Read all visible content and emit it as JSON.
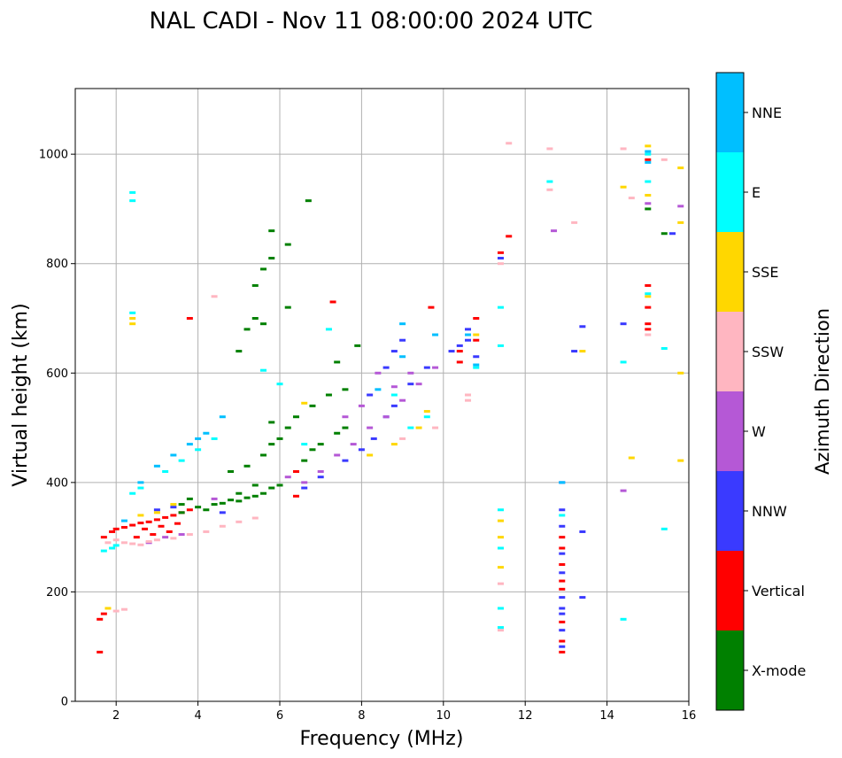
{
  "chart_data": {
    "type": "scatter",
    "title": "NAL CADI - Nov 11 08:00:00 2024 UTC",
    "xlabel": "Frequency (MHz)",
    "ylabel": "Virtual height (km)",
    "xlim": [
      1,
      16
    ],
    "ylim": [
      0,
      1120
    ],
    "xticks": [
      2,
      4,
      6,
      8,
      10,
      12,
      14,
      16
    ],
    "yticks": [
      0,
      200,
      400,
      600,
      800,
      1000
    ],
    "grid": true,
    "colorbar": {
      "label": "Azimuth Direction",
      "categories": [
        {
          "name": "X-mode",
          "color": "#008000"
        },
        {
          "name": "Vertical",
          "color": "#ff0000"
        },
        {
          "name": "NNW",
          "color": "#3a3aff"
        },
        {
          "name": "W",
          "color": "#b558d6"
        },
        {
          "name": "SSW",
          "color": "#ffb6c1"
        },
        {
          "name": "SSE",
          "color": "#ffd700"
        },
        {
          "name": "E",
          "color": "#00ffff"
        },
        {
          "name": "NNE",
          "color": "#00bfff"
        }
      ]
    },
    "series": [
      {
        "name": "Vertical",
        "points": [
          [
            1.7,
            300
          ],
          [
            1.9,
            310
          ],
          [
            2.0,
            315
          ],
          [
            2.2,
            318
          ],
          [
            2.4,
            322
          ],
          [
            2.6,
            326
          ],
          [
            2.8,
            328
          ],
          [
            3.0,
            332
          ],
          [
            3.2,
            336
          ],
          [
            3.4,
            340
          ],
          [
            3.6,
            345
          ],
          [
            3.8,
            350
          ],
          [
            2.5,
            300
          ],
          [
            2.9,
            305
          ],
          [
            3.3,
            310
          ],
          [
            2.7,
            315
          ],
          [
            3.1,
            320
          ],
          [
            3.5,
            325
          ],
          [
            1.7,
            160
          ],
          [
            1.6,
            150
          ],
          [
            1.6,
            90
          ],
          [
            6.4,
            420
          ],
          [
            6.4,
            375
          ],
          [
            10.4,
            640
          ],
          [
            10.4,
            620
          ],
          [
            10.8,
            700
          ],
          [
            10.8,
            660
          ],
          [
            11.4,
            820
          ],
          [
            11.6,
            850
          ],
          [
            12.9,
            300
          ],
          [
            12.9,
            280
          ],
          [
            12.9,
            250
          ],
          [
            12.9,
            220
          ],
          [
            12.9,
            205
          ],
          [
            12.9,
            145
          ],
          [
            12.9,
            110
          ],
          [
            12.9,
            90
          ],
          [
            15.0,
            760
          ],
          [
            15.0,
            720
          ],
          [
            15.0,
            690
          ],
          [
            15.0,
            680
          ],
          [
            15.0,
            990
          ],
          [
            7.3,
            730
          ],
          [
            3.8,
            700
          ],
          [
            9.7,
            720
          ]
        ]
      },
      {
        "name": "X-mode",
        "points": [
          [
            3.6,
            345
          ],
          [
            4.0,
            355
          ],
          [
            4.4,
            360
          ],
          [
            4.8,
            368
          ],
          [
            5.2,
            372
          ],
          [
            5.6,
            380
          ],
          [
            5.8,
            390
          ],
          [
            6.0,
            395
          ],
          [
            4.2,
            350
          ],
          [
            4.6,
            362
          ],
          [
            5.0,
            366
          ],
          [
            5.4,
            375
          ],
          [
            4.8,
            420
          ],
          [
            5.2,
            430
          ],
          [
            5.6,
            450
          ],
          [
            5.8,
            470
          ],
          [
            6.0,
            480
          ],
          [
            6.2,
            500
          ],
          [
            6.6,
            440
          ],
          [
            6.8,
            460
          ],
          [
            7.0,
            470
          ],
          [
            7.4,
            490
          ],
          [
            7.6,
            500
          ],
          [
            5.8,
            510
          ],
          [
            6.4,
            520
          ],
          [
            6.8,
            540
          ],
          [
            7.2,
            560
          ],
          [
            7.6,
            570
          ],
          [
            5.0,
            380
          ],
          [
            5.4,
            395
          ],
          [
            5.0,
            640
          ],
          [
            5.2,
            680
          ],
          [
            5.6,
            690
          ],
          [
            5.4,
            760
          ],
          [
            5.6,
            790
          ],
          [
            5.8,
            810
          ],
          [
            6.2,
            720
          ],
          [
            6.2,
            835
          ],
          [
            5.4,
            700
          ],
          [
            6.7,
            915
          ],
          [
            7.4,
            620
          ],
          [
            7.9,
            650
          ],
          [
            5.8,
            860
          ],
          [
            3.6,
            360
          ],
          [
            3.8,
            370
          ],
          [
            15.4,
            855
          ],
          [
            15.0,
            900
          ]
        ]
      },
      {
        "name": "NNW",
        "points": [
          [
            3.0,
            350
          ],
          [
            3.4,
            355
          ],
          [
            4.6,
            345
          ],
          [
            6.6,
            390
          ],
          [
            7.0,
            410
          ],
          [
            7.6,
            440
          ],
          [
            8.0,
            460
          ],
          [
            8.3,
            480
          ],
          [
            8.6,
            520
          ],
          [
            8.8,
            540
          ],
          [
            8.2,
            560
          ],
          [
            8.6,
            610
          ],
          [
            9.2,
            580
          ],
          [
            9.6,
            610
          ],
          [
            10.2,
            640
          ],
          [
            10.4,
            650
          ],
          [
            10.6,
            660
          ],
          [
            10.8,
            630
          ],
          [
            10.6,
            680
          ],
          [
            11.4,
            810
          ],
          [
            12.9,
            400
          ],
          [
            12.9,
            350
          ],
          [
            12.9,
            320
          ],
          [
            12.9,
            270
          ],
          [
            12.9,
            235
          ],
          [
            12.9,
            190
          ],
          [
            12.9,
            170
          ],
          [
            12.9,
            160
          ],
          [
            12.9,
            130
          ],
          [
            12.9,
            100
          ],
          [
            13.2,
            640
          ],
          [
            13.4,
            685
          ],
          [
            13.4,
            190
          ],
          [
            13.4,
            310
          ],
          [
            14.4,
            690
          ],
          [
            15.6,
            855
          ],
          [
            9.0,
            660
          ],
          [
            8.8,
            640
          ]
        ]
      },
      {
        "name": "W",
        "points": [
          [
            2.8,
            290
          ],
          [
            3.2,
            300
          ],
          [
            3.6,
            305
          ],
          [
            4.4,
            370
          ],
          [
            6.2,
            410
          ],
          [
            6.6,
            400
          ],
          [
            7.0,
            420
          ],
          [
            7.4,
            450
          ],
          [
            7.8,
            470
          ],
          [
            8.2,
            500
          ],
          [
            8.6,
            520
          ],
          [
            9.0,
            550
          ],
          [
            9.4,
            580
          ],
          [
            9.8,
            610
          ],
          [
            8.4,
            600
          ],
          [
            8.8,
            575
          ],
          [
            7.6,
            520
          ],
          [
            12.7,
            860
          ],
          [
            14.4,
            385
          ],
          [
            15.8,
            905
          ],
          [
            15.0,
            910
          ],
          [
            8.0,
            540
          ],
          [
            9.2,
            600
          ]
        ]
      },
      {
        "name": "SSW",
        "points": [
          [
            1.8,
            290
          ],
          [
            2.0,
            295
          ],
          [
            2.2,
            290
          ],
          [
            2.4,
            288
          ],
          [
            2.6,
            286
          ],
          [
            2.8,
            292
          ],
          [
            3.0,
            295
          ],
          [
            3.4,
            298
          ],
          [
            3.8,
            305
          ],
          [
            4.2,
            310
          ],
          [
            4.6,
            320
          ],
          [
            5.0,
            328
          ],
          [
            5.4,
            335
          ],
          [
            2.0,
            165
          ],
          [
            2.2,
            168
          ],
          [
            4.4,
            740
          ],
          [
            10.6,
            560
          ],
          [
            10.6,
            550
          ],
          [
            11.4,
            800
          ],
          [
            11.4,
            215
          ],
          [
            11.4,
            130
          ],
          [
            11.6,
            1020
          ],
          [
            12.6,
            1010
          ],
          [
            12.6,
            935
          ],
          [
            13.2,
            875
          ],
          [
            14.4,
            1010
          ],
          [
            14.6,
            920
          ],
          [
            15.0,
            670
          ],
          [
            15.4,
            990
          ],
          [
            9.8,
            500
          ],
          [
            9.0,
            480
          ]
        ]
      },
      {
        "name": "SSE",
        "points": [
          [
            2.6,
            340
          ],
          [
            3.0,
            345
          ],
          [
            3.4,
            360
          ],
          [
            2.4,
            700
          ],
          [
            2.4,
            690
          ],
          [
            1.8,
            170
          ],
          [
            8.2,
            450
          ],
          [
            8.8,
            470
          ],
          [
            9.4,
            500
          ],
          [
            9.6,
            530
          ],
          [
            11.4,
            330
          ],
          [
            11.4,
            300
          ],
          [
            11.4,
            245
          ],
          [
            13.4,
            640
          ],
          [
            14.4,
            940
          ],
          [
            14.6,
            445
          ],
          [
            15.0,
            1015
          ],
          [
            15.0,
            925
          ],
          [
            15.0,
            740
          ],
          [
            15.8,
            975
          ],
          [
            15.8,
            875
          ],
          [
            15.8,
            600
          ],
          [
            15.8,
            440
          ],
          [
            6.6,
            545
          ],
          [
            10.8,
            670
          ]
        ]
      },
      {
        "name": "E",
        "points": [
          [
            1.7,
            275
          ],
          [
            1.9,
            280
          ],
          [
            2.0,
            285
          ],
          [
            2.4,
            380
          ],
          [
            2.6,
            390
          ],
          [
            3.2,
            420
          ],
          [
            3.6,
            440
          ],
          [
            4.0,
            460
          ],
          [
            4.4,
            480
          ],
          [
            2.4,
            930
          ],
          [
            2.4,
            915
          ],
          [
            2.4,
            710
          ],
          [
            5.6,
            605
          ],
          [
            6.0,
            580
          ],
          [
            6.6,
            470
          ],
          [
            7.2,
            680
          ],
          [
            8.8,
            560
          ],
          [
            9.2,
            500
          ],
          [
            9.6,
            520
          ],
          [
            10.8,
            610
          ],
          [
            11.4,
            720
          ],
          [
            11.4,
            650
          ],
          [
            11.4,
            350
          ],
          [
            11.4,
            280
          ],
          [
            11.4,
            170
          ],
          [
            11.4,
            135
          ],
          [
            12.6,
            950
          ],
          [
            12.9,
            340
          ],
          [
            14.4,
            620
          ],
          [
            14.4,
            150
          ],
          [
            15.0,
            950
          ],
          [
            15.0,
            1000
          ],
          [
            15.0,
            745
          ],
          [
            15.4,
            645
          ],
          [
            15.4,
            315
          ]
        ]
      },
      {
        "name": "NNE",
        "points": [
          [
            2.2,
            330
          ],
          [
            2.6,
            400
          ],
          [
            3.0,
            430
          ],
          [
            3.4,
            450
          ],
          [
            4.2,
            490
          ],
          [
            4.6,
            520
          ],
          [
            4.0,
            480
          ],
          [
            3.8,
            470
          ],
          [
            8.4,
            570
          ],
          [
            9.0,
            630
          ],
          [
            9.0,
            690
          ],
          [
            9.8,
            670
          ],
          [
            10.6,
            670
          ],
          [
            10.8,
            615
          ],
          [
            12.9,
            400
          ],
          [
            15.0,
            1005
          ],
          [
            15.0,
            985
          ]
        ]
      }
    ]
  }
}
